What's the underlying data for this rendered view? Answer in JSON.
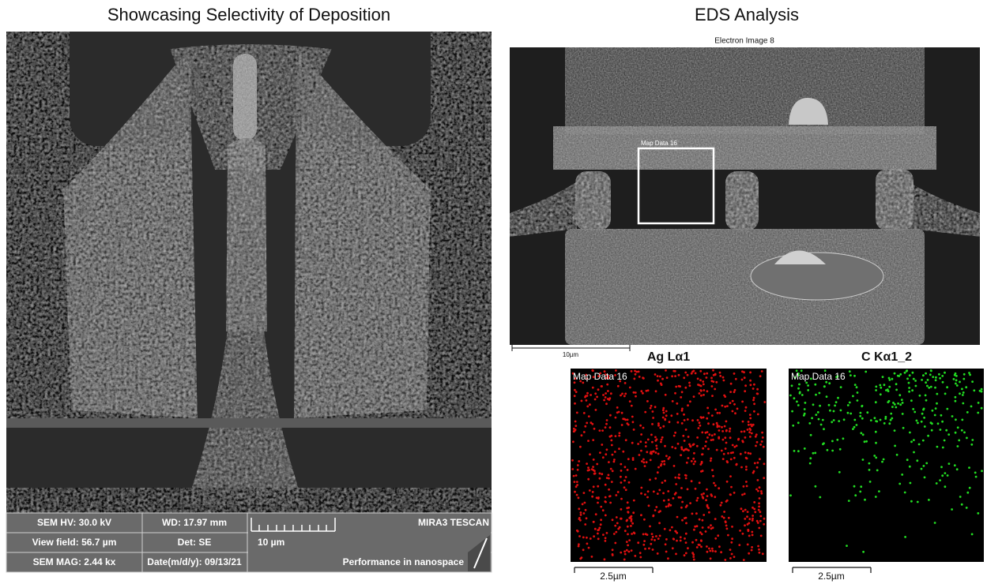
{
  "left_panel": {
    "title": "Showcasing Selectivity of Deposition",
    "sem_info": {
      "rows": [
        [
          "SEM HV: 30.0 kV",
          "WD: 17.97 mm",
          "MIRA3 TESCAN"
        ],
        [
          "View field: 56.7 µm",
          "Det: SE",
          "10 µm"
        ],
        [
          "SEM MAG: 2.44 kx",
          "Date(m/d/y): 09/13/21",
          "Performance in nanospace"
        ]
      ]
    }
  },
  "right_panel": {
    "title": "EDS Analysis",
    "electron_image": {
      "label": "Electron Image 8",
      "region_label": "Map Data 16",
      "scale_bar": "10µm"
    },
    "maps": [
      {
        "element": "Ag Lα1",
        "label": "Map Data 16",
        "scale_bar": "2.5µm"
      },
      {
        "element": "C Kα1_2",
        "label": "Map Data 16",
        "scale_bar": "2.5µm"
      }
    ]
  }
}
